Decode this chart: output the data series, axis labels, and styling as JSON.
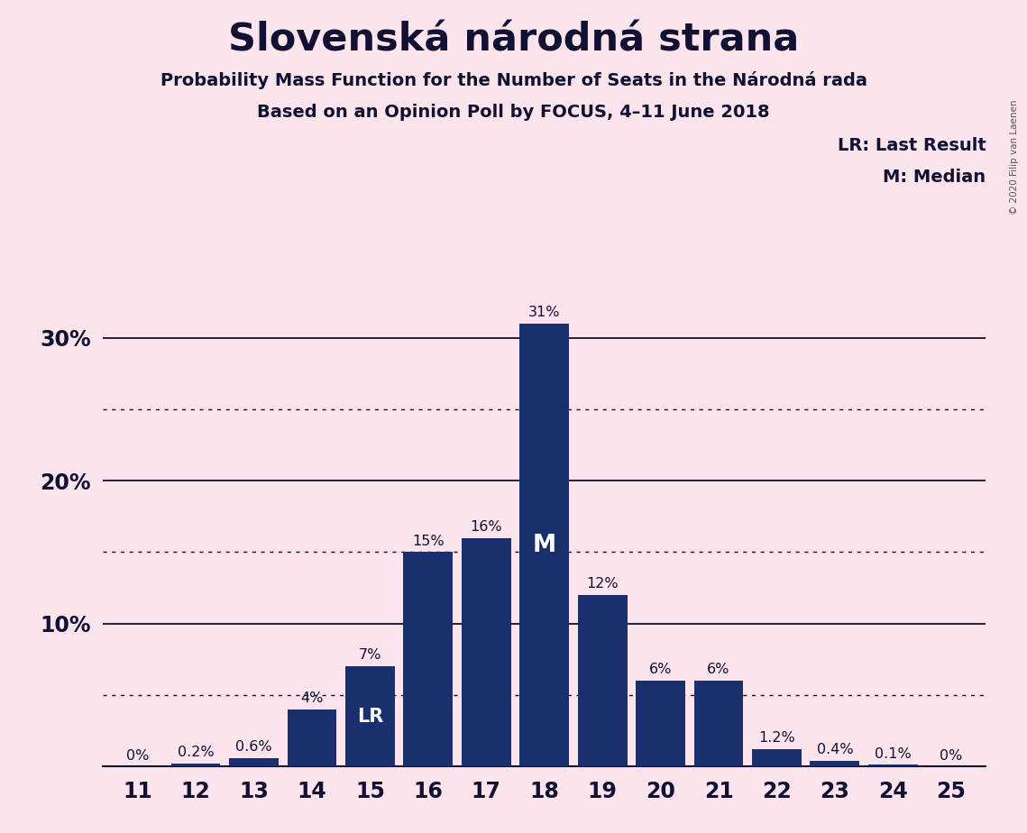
{
  "title": "Slovenská národná strana",
  "subtitle1": "Probability Mass Function for the Number of Seats in the Národná rada",
  "subtitle2": "Based on an Opinion Poll by FOCUS, 4–11 June 2018",
  "copyright": "© 2020 Filip van Laenen",
  "legend_lr": "LR: Last Result",
  "legend_m": "M: Median",
  "background_color": "#fce4ec",
  "bar_color": "#1a2f6e",
  "categories": [
    11,
    12,
    13,
    14,
    15,
    16,
    17,
    18,
    19,
    20,
    21,
    22,
    23,
    24,
    25
  ],
  "values": [
    0.0,
    0.2,
    0.6,
    4.0,
    7.0,
    15.0,
    16.0,
    31.0,
    12.0,
    6.0,
    6.0,
    1.2,
    0.4,
    0.1,
    0.0
  ],
  "labels": [
    "0%",
    "0.2%",
    "0.6%",
    "4%",
    "7%",
    "15%",
    "16%",
    "31%",
    "12%",
    "6%",
    "6%",
    "1.2%",
    "0.4%",
    "0.1%",
    "0%"
  ],
  "lr_seat": 15,
  "median_seat": 18,
  "ylim": [
    0,
    35
  ],
  "dotted_yticks": [
    5,
    15,
    25
  ],
  "solid_yticks": [
    10,
    20,
    30
  ],
  "label_color": "#111133",
  "text_color": "#111133"
}
